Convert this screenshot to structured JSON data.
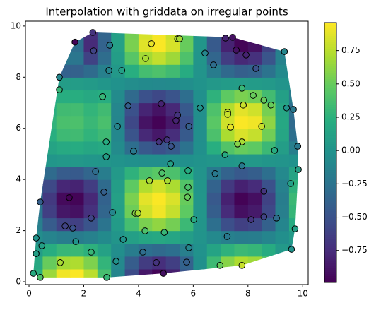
{
  "chart_data": {
    "type": "heatmap",
    "title": "Interpolation with griddata on irregular points",
    "colormap": "viridis",
    "extent": [
      0,
      10,
      0,
      10
    ],
    "z": [
      [
        0.24,
        0.66,
        0.92,
        0.95,
        0.76,
        0.37,
        -0.11,
        -0.55,
        -0.86,
        -0.97,
        -0.83,
        -0.49,
        -0.03,
        0.44,
        0.8,
        0.96,
        0.89,
        0.6,
        0.16,
        -0.31
      ],
      [
        0.18,
        0.5,
        0.69,
        0.72,
        0.57,
        0.28,
        -0.08,
        -0.42,
        -0.65,
        -0.73,
        -0.63,
        -0.37,
        -0.02,
        0.33,
        0.6,
        0.72,
        0.67,
        0.45,
        0.12,
        -0.23
      ],
      [
        0.08,
        0.22,
        0.3,
        0.31,
        0.25,
        0.12,
        -0.04,
        -0.18,
        -0.28,
        -0.32,
        -0.28,
        -0.16,
        -0.01,
        0.14,
        0.26,
        0.32,
        0.29,
        0.2,
        0.05,
        -0.1
      ],
      [
        -0.05,
        -0.12,
        -0.17,
        -0.18,
        -0.14,
        -0.07,
        0.02,
        0.1,
        0.16,
        0.18,
        0.15,
        0.09,
        0.01,
        -0.08,
        -0.15,
        -0.18,
        -0.17,
        -0.11,
        -0.03,
        0.06
      ],
      [
        -0.16,
        -0.43,
        -0.6,
        -0.62,
        -0.49,
        -0.24,
        0.07,
        0.36,
        0.56,
        0.63,
        0.54,
        0.32,
        0.02,
        -0.28,
        -0.52,
        -0.62,
        -0.58,
        -0.39,
        -0.11,
        0.2
      ],
      [
        -0.23,
        -0.63,
        -0.87,
        -0.9,
        -0.72,
        -0.35,
        0.1,
        0.52,
        0.82,
        0.92,
        0.79,
        0.47,
        0.03,
        -0.41,
        -0.75,
        -0.91,
        -0.85,
        -0.57,
        -0.16,
        0.29
      ],
      [
        -0.25,
        -0.67,
        -0.94,
        -0.97,
        -0.77,
        -0.38,
        0.11,
        0.56,
        0.88,
        0.95,
        0.85,
        0.5,
        0.03,
        -0.45,
        -0.81,
        -0.98,
        -0.91,
        -0.61,
        -0.17,
        0.32
      ],
      [
        -0.21,
        -0.56,
        -0.78,
        -0.8,
        -0.64,
        -0.31,
        0.09,
        0.47,
        0.73,
        0.82,
        0.71,
        0.42,
        0.02,
        -0.37,
        -0.67,
        -0.81,
        -0.75,
        -0.51,
        -0.14,
        0.26
      ],
      [
        -0.11,
        -0.31,
        -0.43,
        -0.44,
        -0.35,
        -0.17,
        0.05,
        0.26,
        0.4,
        0.45,
        0.39,
        0.23,
        0.01,
        -0.2,
        -0.37,
        -0.45,
        -0.41,
        -0.28,
        -0.08,
        0.14
      ],
      [
        0.01,
        0.03,
        0.04,
        0.04,
        0.03,
        0.02,
        0,
        -0.02,
        -0.04,
        -0.04,
        -0.03,
        -0.02,
        0,
        0.02,
        0.03,
        0.04,
        0.04,
        0.02,
        0.01,
        -0.01
      ],
      [
        0.05,
        0.14,
        0.19,
        0.2,
        0.16,
        0.19,
        -0.06,
        -0.29,
        -0.45,
        -0.51,
        -0.44,
        -0.26,
        -0.02,
        0.23,
        0.42,
        0.5,
        0.47,
        0.32,
        0.09,
        -0.16
      ],
      [
        0.09,
        0.23,
        0.33,
        0.34,
        0.27,
        0.33,
        -0.09,
        -0.49,
        -0.77,
        -0.86,
        -0.74,
        -0.44,
        -0.03,
        0.39,
        0.71,
        0.85,
        0.79,
        0.53,
        0.15,
        -0.28
      ],
      [
        0.1,
        0.27,
        0.38,
        0.39,
        0.31,
        0.38,
        -0.11,
        -0.57,
        -0.89,
        -0.98,
        -0.86,
        -0.51,
        -0.03,
        0.45,
        0.82,
        0.95,
        0.92,
        0.62,
        0.17,
        -0.32
      ],
      [
        0.09,
        0.24,
        0.34,
        0.35,
        0.28,
        0.34,
        -0.1,
        -0.51,
        -0.79,
        -0.89,
        -0.77,
        -0.45,
        -0.03,
        0.4,
        0.73,
        0.88,
        0.82,
        0.55,
        0.15,
        -0.28
      ],
      [
        0.06,
        0.16,
        0.22,
        0.22,
        0.18,
        0.22,
        -0.06,
        -0.32,
        -0.51,
        -0.57,
        -0.49,
        -0.29,
        -0.02,
        0.26,
        0.47,
        0.56,
        0.52,
        0.35,
        0.1,
        -0.18
      ],
      [
        0.02,
        0.05,
        0.08,
        0.08,
        0.06,
        0.03,
        -0.01,
        -0.05,
        -0.07,
        -0.08,
        -0.07,
        -0.04,
        0,
        0.04,
        0.07,
        0.08,
        0.07,
        0.05,
        0.01,
        -0.03
      ],
      [
        -0.1,
        -0.27,
        -0.38,
        -0.39,
        -0.31,
        -0.15,
        0.04,
        0.23,
        0.36,
        0.4,
        0.34,
        0.2,
        0.01,
        -0.18,
        -0.33,
        -0.4,
        -0.37,
        -0.25,
        -0.07,
        0.13
      ],
      [
        -0.06,
        -0.16,
        -0.22,
        -0.23,
        -0.61,
        -0.3,
        0.09,
        0.44,
        0.69,
        0.78,
        0.67,
        0.4,
        0.02,
        -0.35,
        -0.64,
        -0.77,
        -0.72,
        -0.48,
        -0.13,
        0.25
      ],
      [
        -0.08,
        -0.2,
        -0.28,
        -0.29,
        -0.76,
        -0.37,
        0.11,
        0.56,
        0.87,
        0.95,
        0.84,
        0.5,
        0.03,
        -0.44,
        -0.8,
        -0.97,
        -0.9,
        -0.61,
        -0.17,
        0.31
      ],
      [
        -0.07,
        -0.19,
        -0.27,
        -0.28,
        -0.73,
        -0.36,
        0.1,
        0.54,
        0.84,
        0.94,
        0.81,
        0.48,
        0.03,
        -0.42,
        -0.77,
        -0.93,
        -0.86,
        -0.58,
        -0.16,
        0.3
      ]
    ],
    "points": {
      "type": "scatter",
      "x": [
        2.33,
        1.68,
        4.47,
        5.43,
        5.5,
        7.18,
        7.44,
        9.33,
        2.95,
        2.36,
        6.43,
        7.57,
        7.93,
        4.26,
        6.74,
        8.29,
        1.11,
        2.92,
        3.39,
        1.11,
        2.69,
        7.78,
        8.19,
        8.58,
        8.84,
        4.83,
        3.62,
        6.25,
        7.83,
        9.41,
        9.66,
        7.26,
        7.26,
        5.43,
        5.37,
        5.84,
        7.36,
        8.5,
        3.23,
        2.82,
        4.75,
        5.04,
        5.19,
        7.78,
        7.62,
        9.82,
        3.82,
        8.97,
        7.16,
        2.82,
        5.17,
        7.78,
        2.43,
        4.86,
        9.84,
        5.81,
        6.8,
        5.06,
        4.4,
        9.56,
        5.81,
        2.74,
        8.58,
        1.47,
        0.41,
        5.79,
        3.88,
        3.98,
        3.05,
        8.11,
        8.58,
        9.04,
        2.27,
        6.02,
        1.32,
        1.6,
        4.24,
        4.94,
        9.72,
        7.24,
        0.26,
        0.47,
        1.71,
        3.44,
        5.84,
        0.26,
        4.16,
        2.27,
        9.59,
        3.18,
        4.65,
        5.76,
        1.14,
        6.98,
        7.78,
        0.16,
        4.91,
        0.41,
        2.84
      ],
      "y": [
        9.75,
        9.37,
        9.31,
        9.5,
        9.5,
        9.53,
        9.56,
        9.0,
        9.25,
        9.03,
        8.94,
        9.06,
        8.87,
        8.73,
        8.48,
        8.34,
        8.0,
        8.26,
        8.26,
        7.51,
        7.24,
        7.57,
        7.29,
        7.1,
        6.91,
        6.96,
        6.88,
        6.8,
        6.91,
        6.8,
        6.74,
        6.63,
        6.55,
        6.52,
        6.3,
        6.08,
        6.05,
        6.08,
        6.08,
        5.47,
        5.47,
        5.55,
        5.3,
        5.47,
        5.39,
        5.3,
        5.11,
        5.14,
        4.97,
        4.89,
        4.61,
        4.53,
        4.31,
        4.25,
        4.39,
        4.34,
        4.23,
        3.95,
        3.95,
        3.84,
        3.7,
        3.51,
        3.54,
        3.29,
        3.12,
        3.31,
        2.68,
        2.68,
        2.71,
        2.43,
        2.54,
        2.49,
        2.49,
        2.43,
        2.18,
        2.1,
        1.99,
        1.93,
        2.07,
        1.77,
        1.71,
        1.41,
        1.57,
        1.66,
        1.33,
        1.1,
        1.16,
        1.16,
        1.27,
        0.8,
        0.75,
        0.77,
        0.75,
        0.64,
        0.64,
        0.33,
        0.33,
        0.17,
        0.17
      ],
      "values": [
        -0.7,
        -0.98,
        0.9,
        0.7,
        0.7,
        -0.8,
        -0.9,
        -0.1,
        -0.2,
        -0.6,
        -0.1,
        -0.9,
        -0.8,
        0.7,
        -0.3,
        -0.5,
        -0.1,
        -0.1,
        0.1,
        0.3,
        0.3,
        0.3,
        0.5,
        0.5,
        0.5,
        -0.8,
        -0.4,
        0.0,
        0.8,
        0.0,
        -0.2,
        0.8,
        0.8,
        -0.7,
        -0.8,
        -0.4,
        0.9,
        0.8,
        -0.1,
        0.2,
        -0.7,
        -0.7,
        -0.5,
        0.7,
        0.6,
        -0.2,
        -0.2,
        0.2,
        0.2,
        0.1,
        0.1,
        -0.2,
        -0.3,
        0.4,
        0.1,
        0.2,
        -0.2,
        0.7,
        0.7,
        0.1,
        0.4,
        -0.4,
        -0.7,
        -0.98,
        -0.4,
        0.5,
        0.6,
        0.7,
        -0.1,
        -0.7,
        -0.6,
        -0.3,
        -0.6,
        0.2,
        -0.6,
        -0.5,
        0.4,
        0.3,
        0.1,
        -0.2,
        0.0,
        0.1,
        0.0,
        0.0,
        -0.1,
        0.1,
        -0.3,
        0.3,
        0.0,
        0.0,
        -0.7,
        -0.4,
        0.7,
        0.5,
        0.8,
        0.2,
        -0.9,
        0.4,
        0.3
      ]
    },
    "xlim": [
      -0.13,
      10.2
    ],
    "ylim": [
      -0.11,
      10.19
    ],
    "xticks": [
      0,
      2,
      4,
      6,
      8,
      10
    ],
    "yticks": [
      0,
      2,
      4,
      6,
      8,
      10
    ],
    "clim": [
      -0.99,
      0.96
    ],
    "cticks": [
      {
        "value": -0.75,
        "label": "−0.75"
      },
      {
        "value": -0.5,
        "label": "−0.50"
      },
      {
        "value": -0.25,
        "label": "−0.25"
      },
      {
        "value": 0,
        "label": "0.00"
      },
      0.25,
      {
        "value": 0.5,
        "label": "0.50"
      },
      0.75
    ]
  }
}
